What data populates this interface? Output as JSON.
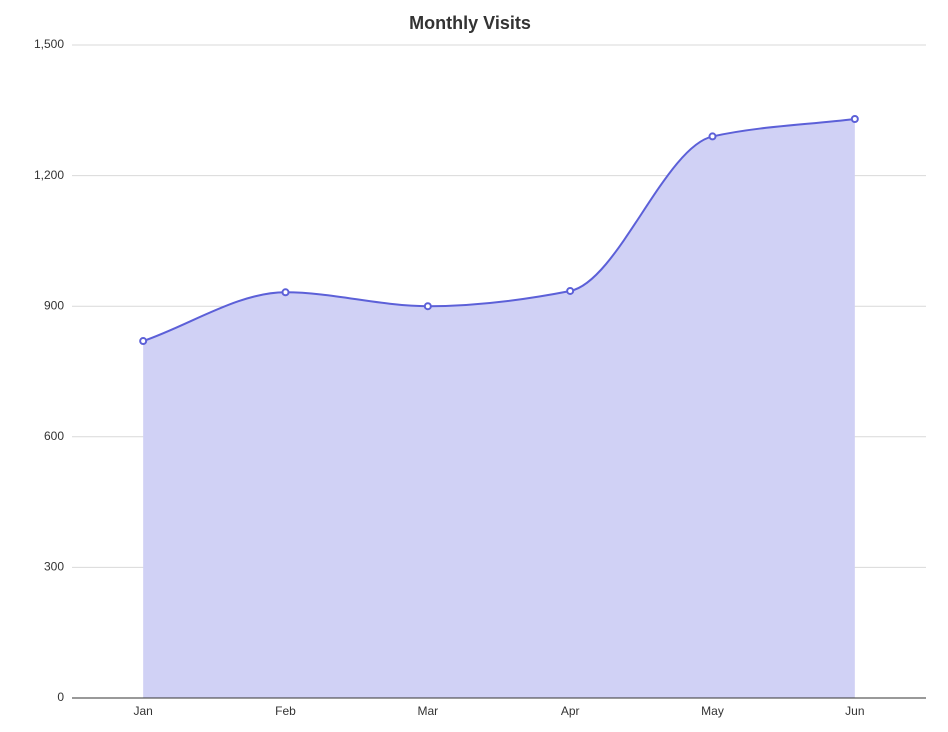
{
  "chart_data": {
    "type": "area",
    "title": "Monthly Visits",
    "categories": [
      "Jan",
      "Feb",
      "Mar",
      "Apr",
      "May",
      "Jun"
    ],
    "values": [
      820,
      932,
      900,
      935,
      1290,
      1330
    ],
    "color": "#5c60d8",
    "fill_color": "#d0d1f5",
    "ylim": [
      0,
      1500
    ],
    "yticks": [
      0,
      300,
      600,
      900,
      {
        "value": 1200,
        "label": "1,200"
      },
      {
        "value": 1500,
        "label": "1,500"
      }
    ],
    "grid": true
  }
}
